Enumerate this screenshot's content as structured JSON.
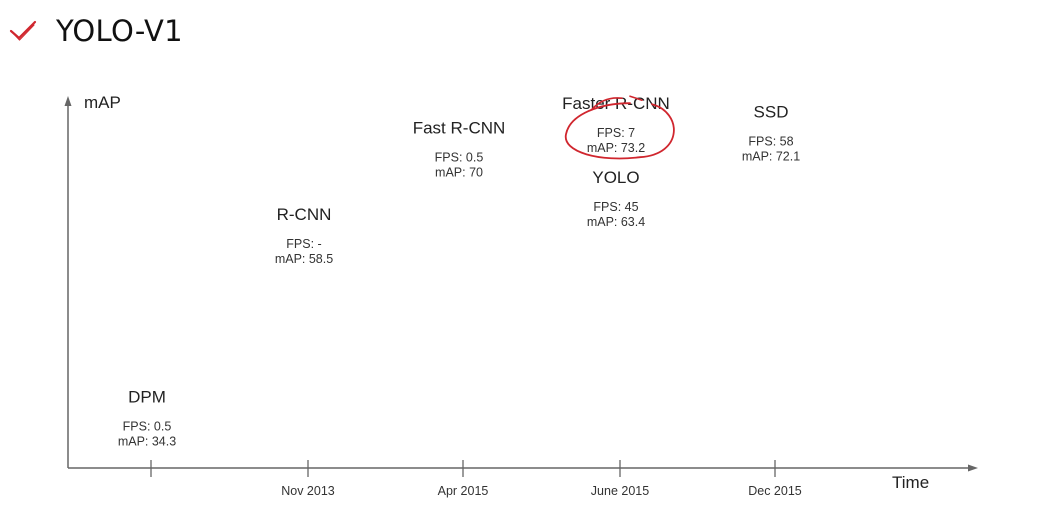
{
  "slide": {
    "title": "YOLO-V1",
    "icon": "check-icon",
    "accent": "#d0262e"
  },
  "chart_data": {
    "type": "scatter",
    "title": "",
    "xlabel": "Time",
    "ylabel": "mAP",
    "x_ticks": [
      "",
      "Nov 2013",
      "Apr 2015",
      "June 2015",
      "Dec 2015"
    ],
    "ylim": [
      30,
      78
    ],
    "grid": false,
    "points": [
      {
        "name": "DPM",
        "x_index": 0,
        "fps": "0.5",
        "map": 34.3,
        "fps_label": "FPS: 0.5",
        "map_label": "mAP: 34.3"
      },
      {
        "name": "R-CNN",
        "x_index": 1,
        "fps": "-",
        "map": 58.5,
        "fps_label": "FPS: -",
        "map_label": "mAP: 58.5"
      },
      {
        "name": "Fast R-CNN",
        "x_index": 2,
        "fps": "0.5",
        "map": 70,
        "fps_label": "FPS: 0.5",
        "map_label": "mAP: 70"
      },
      {
        "name": "Faster R-CNN",
        "x_index": 3,
        "fps": "7",
        "map": 73.2,
        "fps_label": "FPS: 7",
        "map_label": "mAP: 73.2",
        "highlighted": true
      },
      {
        "name": "YOLO",
        "x_index": 3,
        "fps": "45",
        "map": 63.4,
        "fps_label": "FPS: 45",
        "map_label": "mAP: 63.4"
      },
      {
        "name": "SSD",
        "x_index": 4,
        "fps": "58",
        "map": 72.1,
        "fps_label": "FPS: 58",
        "map_label": "mAP: 72.1"
      }
    ],
    "annotation_color": "#d0262e"
  }
}
